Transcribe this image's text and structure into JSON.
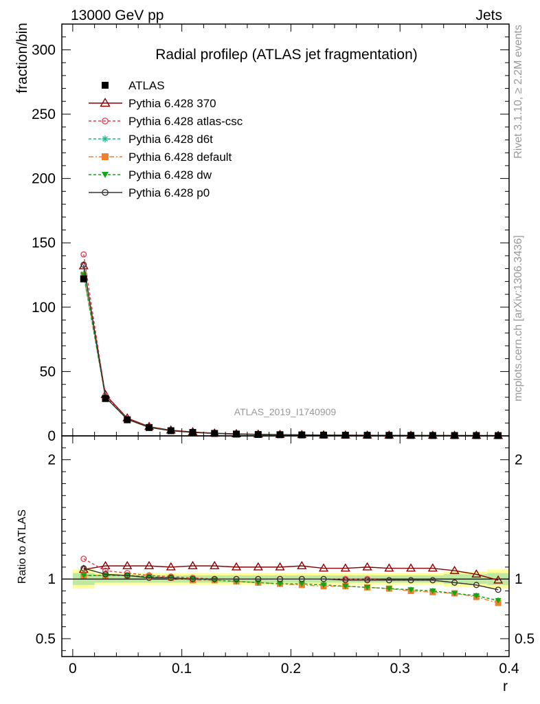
{
  "header": {
    "left": "13000 GeV pp",
    "right": "Jets"
  },
  "side_labels": {
    "rivet": "Rivet 3.1.10, ≥ 2.2M events",
    "mcplots": "mcplots.cern.ch [arXiv:1306.3436]"
  },
  "chart_data": [
    {
      "panel": "main",
      "type": "line",
      "title": "Radial profileρ (ATLAS jet fragmentation)",
      "xlabel": "",
      "ylabel": "fraction/bin",
      "analysis_label": "ATLAS_2019_I1740909",
      "xlim": [
        -0.01,
        0.4
      ],
      "ylim": [
        0,
        320
      ],
      "yticks": [
        0,
        50,
        100,
        150,
        200,
        250,
        300
      ],
      "x": [
        0.01,
        0.03,
        0.05,
        0.07,
        0.09,
        0.11,
        0.13,
        0.15,
        0.17,
        0.19,
        0.21,
        0.23,
        0.25,
        0.27,
        0.29,
        0.31,
        0.33,
        0.35,
        0.37,
        0.39
      ],
      "series": [
        {
          "name": "ATLAS",
          "color": "#000000",
          "marker": "square-filled",
          "dash": "none",
          "values": [
            122,
            29,
            12.5,
            6.5,
            4.0,
            2.7,
            1.9,
            1.4,
            1.1,
            0.9,
            0.75,
            0.6,
            0.5,
            0.45,
            0.4,
            0.35,
            0.3,
            0.27,
            0.25,
            0.22
          ]
        },
        {
          "name": "Pythia 6.428 370",
          "color": "#8b0000",
          "marker": "triangle-open",
          "dash": "solid",
          "values": [
            132,
            32,
            13.8,
            7.2,
            4.4,
            3.0,
            2.1,
            1.55,
            1.2,
            1.0,
            0.85,
            0.66,
            0.55,
            0.5,
            0.44,
            0.38,
            0.33,
            0.29,
            0.26,
            0.21
          ]
        },
        {
          "name": "Pythia 6.428 atlas-csc",
          "color": "#e8384f",
          "marker": "circle-open",
          "dash": "4,3",
          "values": [
            141,
            31,
            13.2,
            6.7,
            4.1,
            2.7,
            1.9,
            1.4,
            1.1,
            0.9,
            0.75,
            0.6,
            0.5,
            0.45,
            0.4,
            0.35,
            0.3,
            0.26,
            0.24,
            0.2
          ]
        },
        {
          "name": "Pythia 6.428 d6t",
          "color": "#17b890",
          "marker": "asterisk",
          "dash": "4,3",
          "values": [
            126,
            30,
            12.8,
            6.6,
            4.0,
            2.7,
            1.9,
            1.35,
            1.05,
            0.86,
            0.72,
            0.57,
            0.47,
            0.42,
            0.37,
            0.32,
            0.27,
            0.24,
            0.22,
            0.18
          ]
        },
        {
          "name": "Pythia 6.428 default",
          "color": "#f08030",
          "marker": "square-filled",
          "dash": "7,3,2,3",
          "values": [
            125,
            30,
            12.8,
            6.6,
            4.0,
            2.7,
            1.9,
            1.35,
            1.05,
            0.86,
            0.71,
            0.56,
            0.47,
            0.42,
            0.37,
            0.31,
            0.27,
            0.24,
            0.21,
            0.18
          ]
        },
        {
          "name": "Pythia 6.428 dw",
          "color": "#14a614",
          "marker": "triangle-down-filled",
          "dash": "4,3",
          "values": [
            125,
            30,
            12.8,
            6.6,
            4.0,
            2.7,
            1.9,
            1.35,
            1.05,
            0.86,
            0.72,
            0.56,
            0.47,
            0.42,
            0.37,
            0.32,
            0.27,
            0.24,
            0.21,
            0.18
          ]
        },
        {
          "name": "Pythia 6.428 p0",
          "color": "#333333",
          "marker": "circle-open",
          "dash": "solid",
          "values": [
            133,
            30,
            12.9,
            6.6,
            4.0,
            2.7,
            1.9,
            1.4,
            1.1,
            0.9,
            0.75,
            0.6,
            0.5,
            0.45,
            0.4,
            0.35,
            0.3,
            0.26,
            0.24,
            0.2
          ]
        }
      ]
    },
    {
      "panel": "ratio",
      "type": "line",
      "xlabel": "r",
      "ylabel": "Ratio to ATLAS",
      "xlim": [
        -0.01,
        0.4
      ],
      "ylim": [
        0.35,
        2.2
      ],
      "yticks": [
        0.5,
        1,
        2
      ],
      "xticks": [
        0,
        0.1,
        0.2,
        0.3,
        0.4
      ],
      "x": [
        0.01,
        0.03,
        0.05,
        0.07,
        0.09,
        0.11,
        0.13,
        0.15,
        0.17,
        0.19,
        0.21,
        0.23,
        0.25,
        0.27,
        0.29,
        0.31,
        0.33,
        0.35,
        0.37,
        0.39
      ],
      "band": {
        "color": "#ffff99",
        "inner_color": "#bfe9a0",
        "halfwidth": [
          0.05,
          0.03,
          0.03,
          0.03,
          0.03,
          0.03,
          0.03,
          0.03,
          0.03,
          0.03,
          0.03,
          0.03,
          0.03,
          0.03,
          0.03,
          0.03,
          0.03,
          0.04,
          0.04,
          0.05
        ]
      },
      "series": [
        {
          "name": "Pythia 6.428 370",
          "color": "#8b0000",
          "marker": "triangle-open",
          "dash": "solid",
          "values": [
            1.08,
            1.11,
            1.11,
            1.11,
            1.1,
            1.11,
            1.11,
            1.1,
            1.1,
            1.1,
            1.11,
            1.09,
            1.09,
            1.1,
            1.09,
            1.09,
            1.09,
            1.07,
            1.04,
            0.99
          ]
        },
        {
          "name": "Pythia 6.428 atlas-csc",
          "color": "#e8384f",
          "marker": "circle-open",
          "dash": "4,3",
          "values": [
            1.17,
            1.07,
            1.05,
            1.03,
            1.02,
            1.01,
            1.0,
            1.0,
            1.0,
            1.0,
            1.0,
            1.0,
            1.0,
            1.0,
            0.99,
            0.99,
            0.99,
            0.97,
            0.95,
            0.91
          ]
        },
        {
          "name": "Pythia 6.428 d6t",
          "color": "#17b890",
          "marker": "asterisk",
          "dash": "4,3",
          "values": [
            1.03,
            1.03,
            1.03,
            1.02,
            1.01,
            1.0,
            0.99,
            0.98,
            0.97,
            0.96,
            0.96,
            0.95,
            0.94,
            0.93,
            0.92,
            0.91,
            0.9,
            0.88,
            0.86,
            0.82
          ]
        },
        {
          "name": "Pythia 6.428 default",
          "color": "#f08030",
          "marker": "square-filled",
          "dash": "7,3,2,3",
          "values": [
            1.03,
            1.03,
            1.03,
            1.02,
            1.01,
            0.99,
            0.99,
            0.98,
            0.97,
            0.96,
            0.95,
            0.94,
            0.94,
            0.93,
            0.92,
            0.9,
            0.89,
            0.88,
            0.85,
            0.8
          ]
        },
        {
          "name": "Pythia 6.428 dw",
          "color": "#14a614",
          "marker": "triangle-down-filled",
          "dash": "4,3",
          "values": [
            1.03,
            1.03,
            1.03,
            1.02,
            1.01,
            1.0,
            0.99,
            0.98,
            0.97,
            0.96,
            0.96,
            0.95,
            0.94,
            0.93,
            0.92,
            0.91,
            0.9,
            0.88,
            0.86,
            0.82
          ]
        },
        {
          "name": "Pythia 6.428 p0",
          "color": "#333333",
          "marker": "circle-open",
          "dash": "solid",
          "values": [
            1.09,
            1.04,
            1.03,
            1.01,
            1.01,
            1.0,
            1.0,
            1.0,
            1.0,
            1.0,
            1.0,
            1.0,
            0.99,
            0.99,
            0.99,
            0.99,
            0.99,
            0.97,
            0.95,
            0.91
          ]
        }
      ]
    }
  ]
}
